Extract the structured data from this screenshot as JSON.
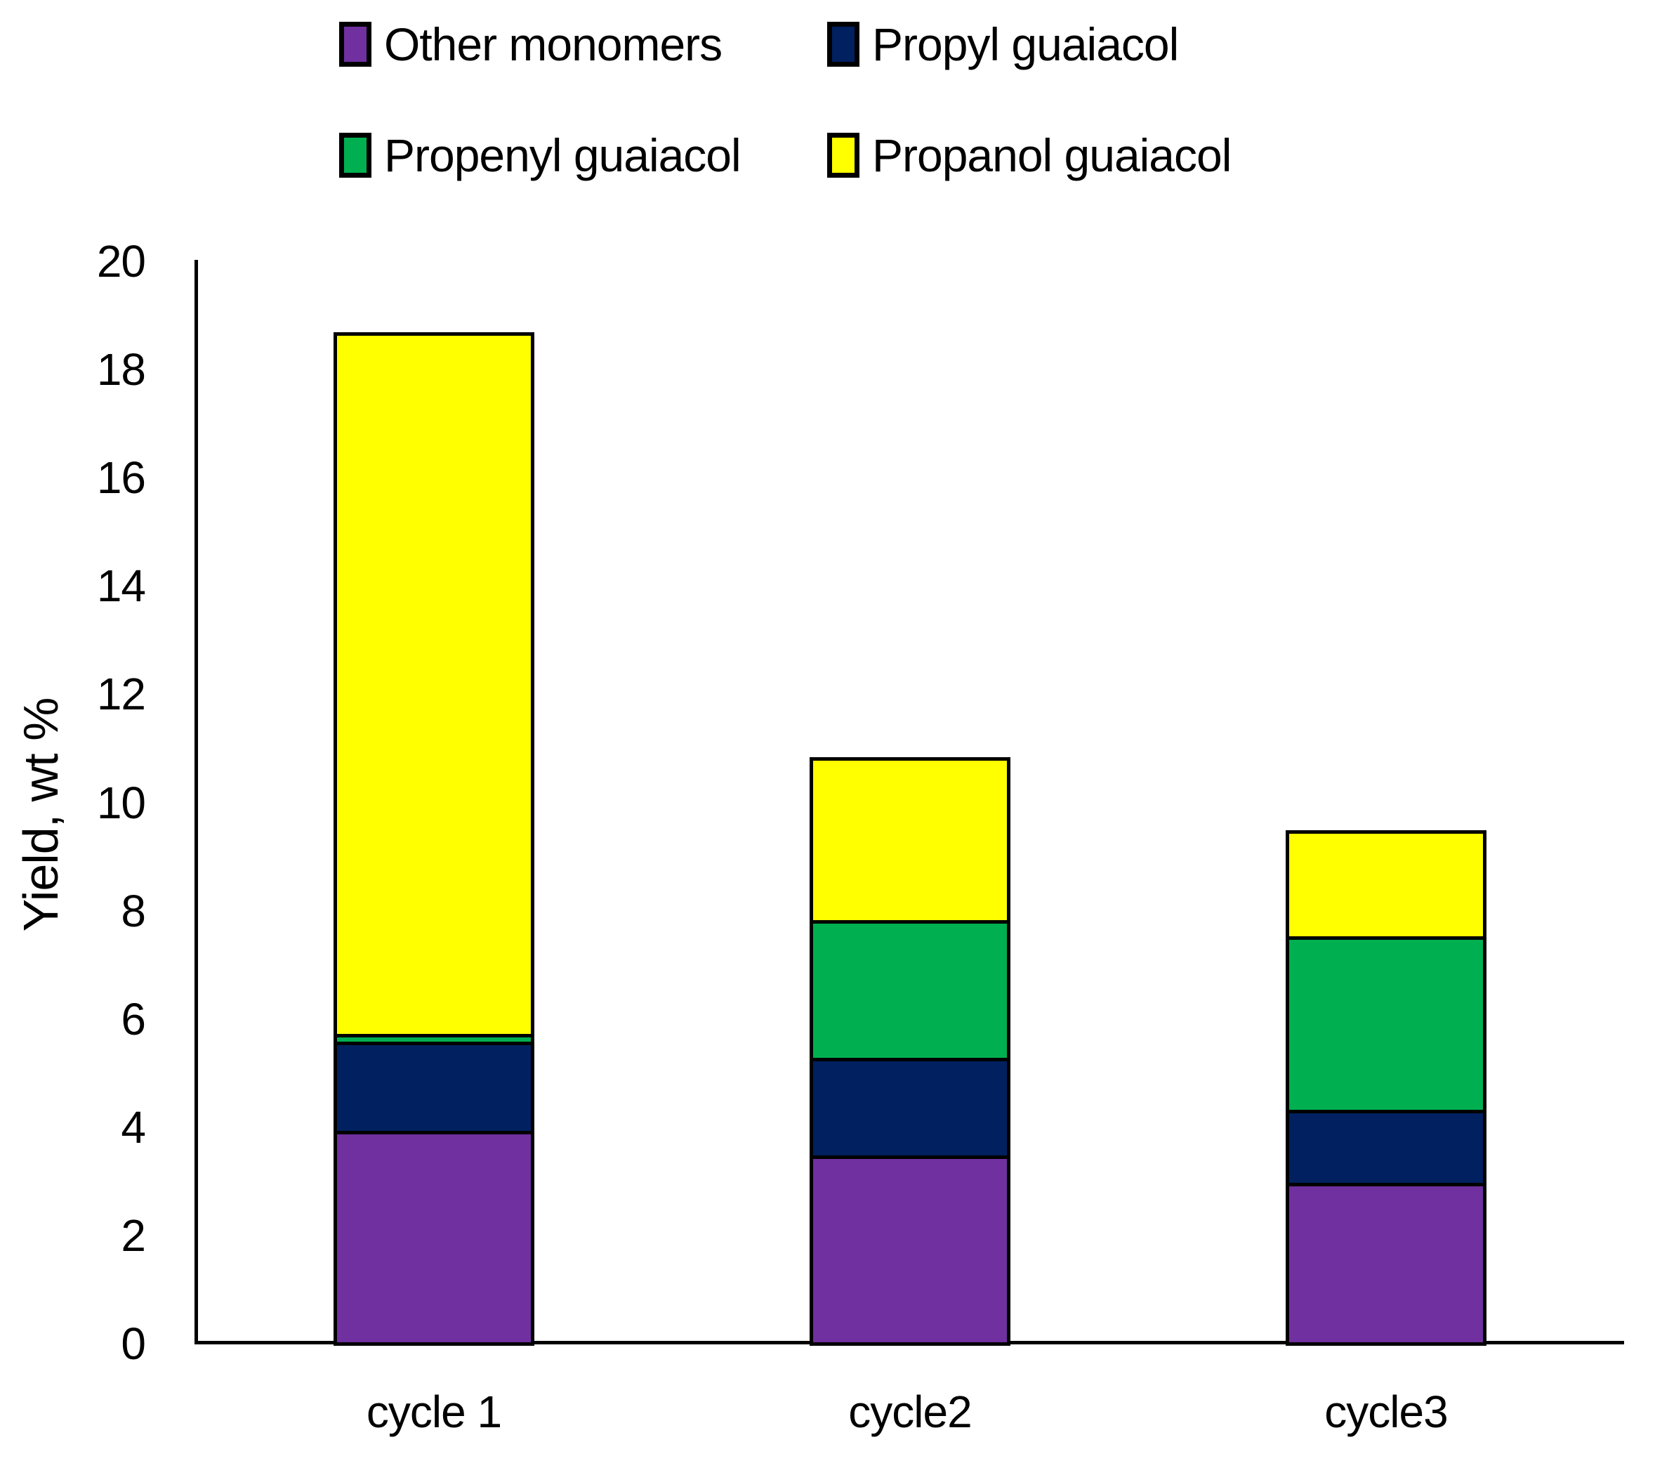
{
  "figure": {
    "background": "#ffffff",
    "axis_color": "#000000",
    "y_axis_title": "Yield, wt %"
  },
  "chart_data": {
    "type": "bar",
    "stacked": true,
    "title": "",
    "xlabel": "",
    "ylabel": "Yield, wt %",
    "ylim": [
      0,
      20
    ],
    "ytick_step": 2,
    "y_tick_labels": [
      "0",
      "2",
      "4",
      "6",
      "8",
      "10",
      "12",
      "14",
      "16",
      "18",
      "20"
    ],
    "grid": false,
    "legend_position": "top",
    "categories": [
      "cycle 1",
      "cycle2",
      "cycle3"
    ],
    "series": [
      {
        "name": "Other monomers",
        "color": "#7030A0",
        "values": [
          3.9,
          3.45,
          2.95
        ]
      },
      {
        "name": "Propyl guaiacol",
        "color": "#002060",
        "values": [
          1.65,
          1.8,
          1.35
        ]
      },
      {
        "name": "Propenyl guaiacol",
        "color": "#00B050",
        "values": [
          0.15,
          2.55,
          3.2
        ]
      },
      {
        "name": "Propanol guaiacol",
        "color": "#FFFF00",
        "values": [
          12.9,
          2.95,
          1.9
        ]
      }
    ],
    "bar_totals": [
      18.6,
      10.75,
      9.4
    ]
  }
}
